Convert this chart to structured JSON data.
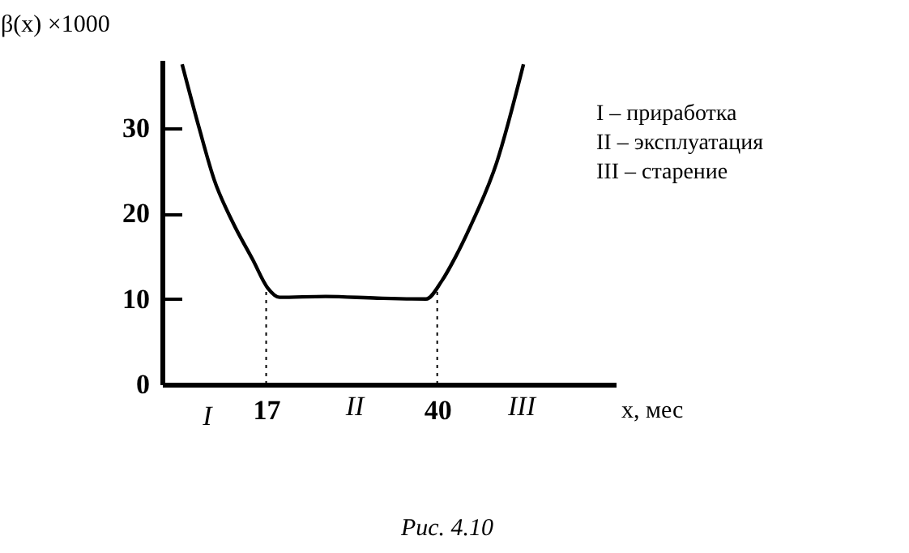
{
  "chart_data": {
    "type": "line",
    "xlabel": "x, мес",
    "ylabel": "β(x) ×1000",
    "x": [
      5.7,
      8,
      10,
      12.5,
      15.2,
      17.2,
      18.8,
      25,
      32,
      38.5,
      40.6,
      42.5,
      44.4,
      48,
      51.6
    ],
    "series": [
      {
        "color": "#000000",
        "values": [
          37.5,
          30,
          24,
          19,
          14.6,
          11.3,
          10.2,
          10.3,
          10.1,
          10,
          12.1,
          15,
          18.4,
          26,
          37.5
        ]
      }
    ],
    "xlim": [
      3,
      64
    ],
    "xticks": [
      17,
      40
    ],
    "ylim": [
      0,
      38
    ],
    "yticks": [
      0,
      10,
      20,
      30
    ],
    "grid": false,
    "marker": "none",
    "line_style": "solid",
    "ref_lines": [
      {
        "axis": "x",
        "value": 17,
        "label": null,
        "line_style": "dotted"
      },
      {
        "axis": "x",
        "value": 40,
        "label": null,
        "line_style": "dotted"
      }
    ],
    "annotations": [
      "I",
      "II",
      "III",
      "I – приработка",
      "II – эксплуатация",
      "III – старение",
      "Рис. 4.10"
    ]
  }
}
